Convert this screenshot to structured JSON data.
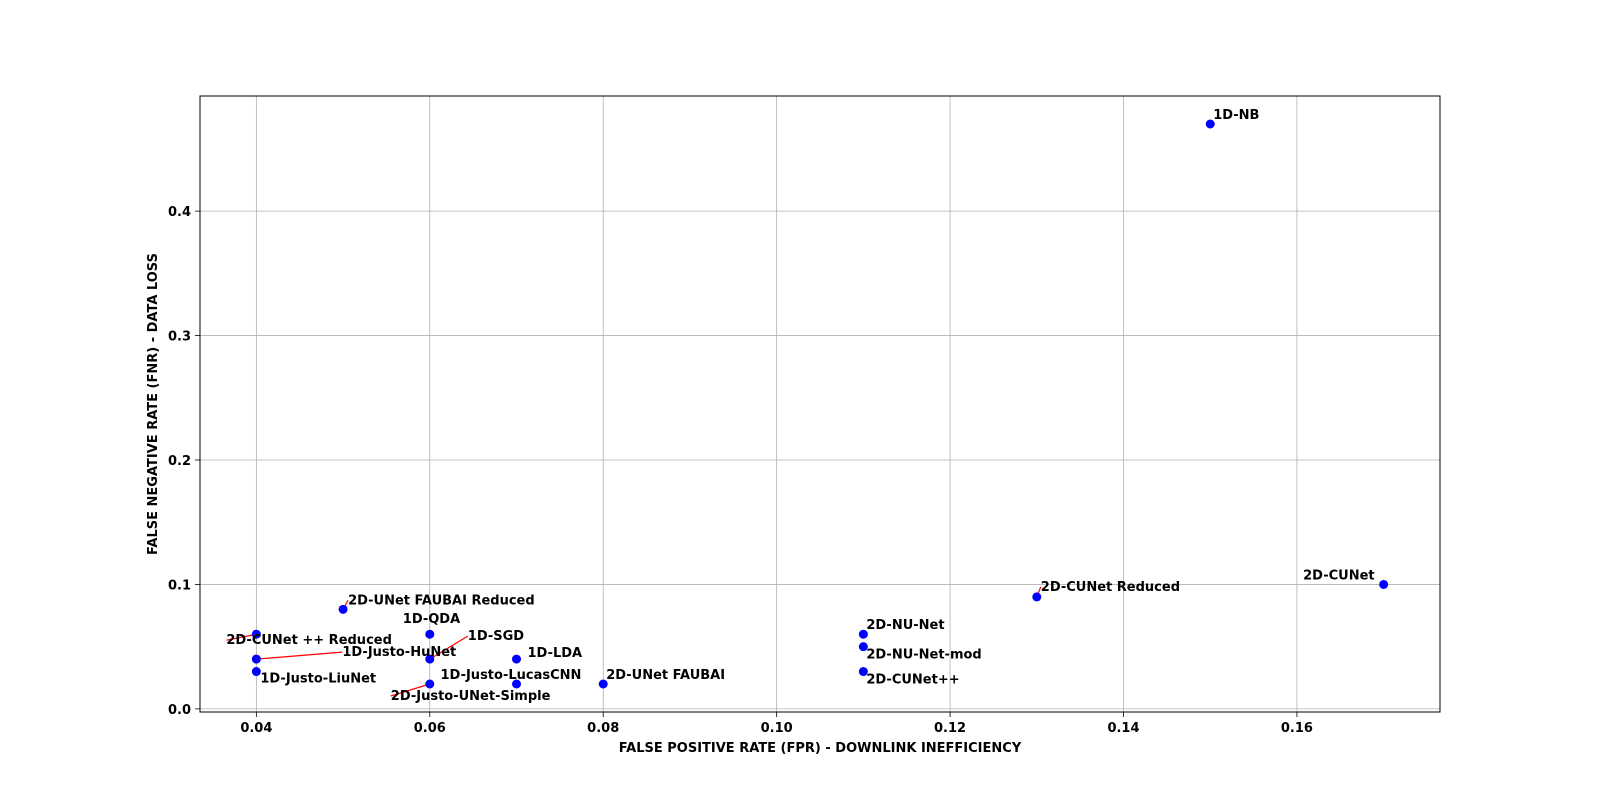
{
  "chart_data": {
    "type": "scatter",
    "title": "",
    "xlabel": "FALSE POSITIVE RATE (FPR) - DOWNLINK INEFFICIENCY",
    "ylabel": "FALSE NEGATIVE RATE (FNR) -  DATA LOSS",
    "xlim": [
      0.0335,
      0.1765
    ],
    "ylim": [
      -0.0025,
      0.4925
    ],
    "x_ticks": [
      "0.04",
      "0.06",
      "0.08",
      "0.10",
      "0.12",
      "0.14",
      "0.16"
    ],
    "y_ticks": [
      "0.0",
      "0.1",
      "0.2",
      "0.3",
      "0.4"
    ],
    "grid": true,
    "marker_color": "#0000ff",
    "annotation_line_color": "#ff0000",
    "points": [
      {
        "label": "1D-NB",
        "x": 0.15,
        "y": 0.47
      },
      {
        "label": "2D-CUNet",
        "x": 0.17,
        "y": 0.1
      },
      {
        "label": "2D-CUNet Reduced",
        "x": 0.13,
        "y": 0.09
      },
      {
        "label": "2D-NU-Net",
        "x": 0.11,
        "y": 0.06
      },
      {
        "label": "2D-NU-Net-mod",
        "x": 0.11,
        "y": 0.05
      },
      {
        "label": "2D-CUNet++",
        "x": 0.11,
        "y": 0.03
      },
      {
        "label": "2D-UNet FAUBAI",
        "x": 0.08,
        "y": 0.02
      },
      {
        "label": "1D-LDA",
        "x": 0.07,
        "y": 0.04
      },
      {
        "label": "1D-Justo-LucasCNN",
        "x": 0.07,
        "y": 0.02
      },
      {
        "label": "1D-QDA",
        "x": 0.06,
        "y": 0.06
      },
      {
        "label": "1D-SGD",
        "x": 0.06,
        "y": 0.04
      },
      {
        "label": "2D-Justo-UNet-Simple",
        "x": 0.06,
        "y": 0.02
      },
      {
        "label": "2D-UNet FAUBAI Reduced",
        "x": 0.05,
        "y": 0.08
      },
      {
        "label": "2D-CUNet ++ Reduced",
        "x": 0.04,
        "y": 0.06
      },
      {
        "label": "1D-Justo-HuNet",
        "x": 0.04,
        "y": 0.04
      },
      {
        "label": "1D-Justo-LiuNet",
        "x": 0.04,
        "y": 0.03
      }
    ]
  }
}
